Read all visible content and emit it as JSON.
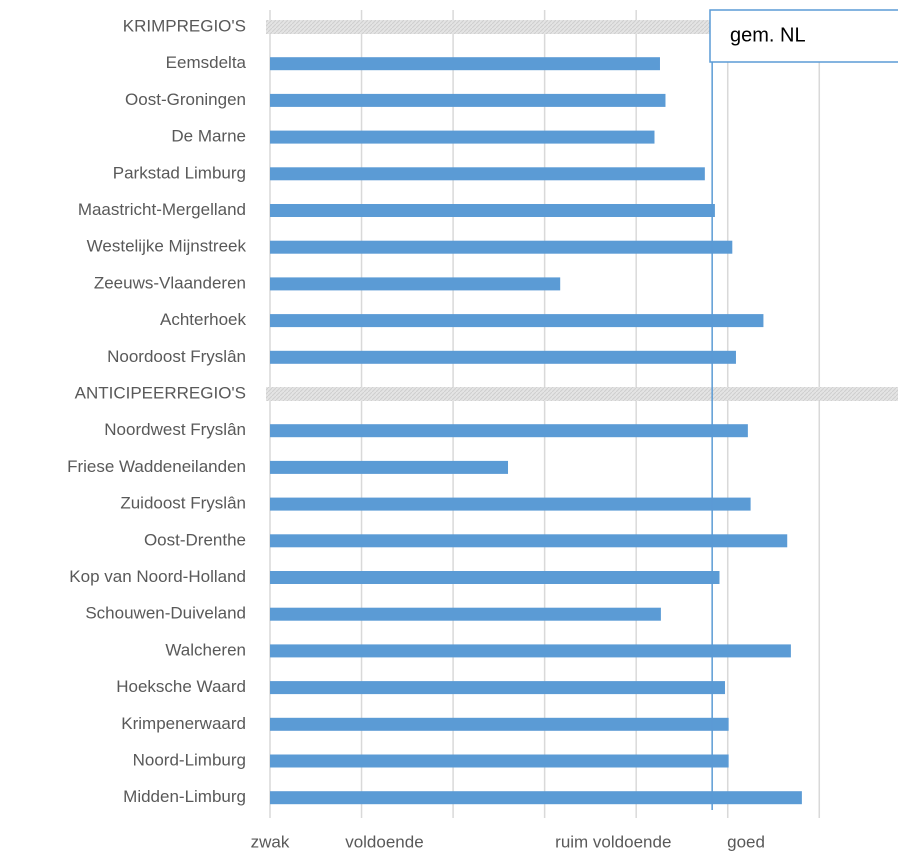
{
  "chart_data": {
    "type": "bar",
    "orientation": "horizontal",
    "categories": [
      "KRIMPREGIO'S",
      "Eemsdelta",
      "Oost-Groningen",
      "De Marne",
      "Parkstad Limburg",
      "Maastricht-Mergelland",
      "Westelijke Mijnstreek",
      "Zeeuws-Vlaanderen",
      "Achterhoek",
      "Noordoost Fryslân",
      "ANTICIPEERREGIO'S",
      "Noordwest Fryslân",
      "Friese Waddeneilanden",
      "Zuidoost Fryslân",
      "Oost-Drenthe",
      "Kop van Noord-Holland",
      "Schouwen-Duiveland",
      "Walcheren",
      "Hoeksche Waard",
      "Krimpenerwaard",
      "Noord-Limburg",
      "Midden-Limburg"
    ],
    "values": [
      null,
      4.26,
      4.32,
      4.2,
      4.75,
      4.86,
      5.05,
      3.17,
      5.39,
      5.09,
      null,
      5.22,
      2.6,
      5.25,
      5.65,
      4.91,
      4.27,
      5.69,
      4.97,
      5.01,
      5.01,
      5.81
    ],
    "color": "#5b9bd5",
    "xlim": [
      0,
      6.86
    ],
    "xticks": [
      {
        "value": 0,
        "label": "zwak"
      },
      {
        "value": 1.25,
        "label": "voldoende"
      },
      {
        "value": 3.75,
        "label": "ruim voldoende"
      },
      {
        "value": 5.2,
        "label": "goed"
      }
    ],
    "gridlines": [
      0,
      1,
      2,
      3,
      4,
      5,
      6
    ],
    "reference_line": {
      "name": "gem. NL",
      "value": 4.83,
      "color": "#5b9bd5"
    }
  }
}
